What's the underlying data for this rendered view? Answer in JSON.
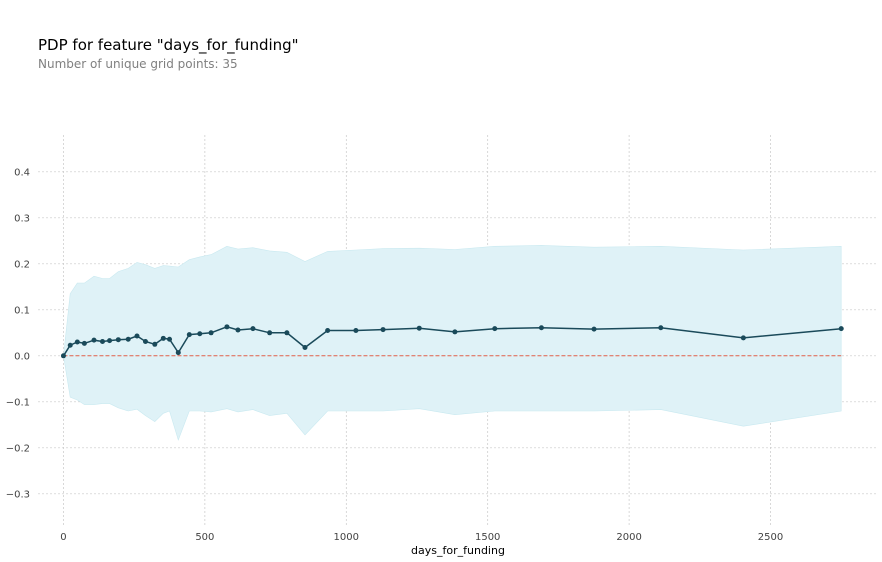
{
  "title": "PDP for feature \"days_for_funding\"",
  "subtitle": "Number of unique grid points: 35",
  "chart_data": {
    "type": "line",
    "xlabel": "days_for_funding",
    "ylabel": "",
    "xlim": [
      -90,
      2880
    ],
    "ylim": [
      -0.37,
      0.48
    ],
    "xticks": [
      0,
      500,
      1000,
      1500,
      2000,
      2500
    ],
    "xtick_labels": [
      "0",
      "500",
      "1000",
      "1500",
      "2000",
      "2500"
    ],
    "yticks": [
      -0.3,
      -0.2,
      -0.1,
      0.0,
      0.1,
      0.2,
      0.3,
      0.4
    ],
    "ytick_labels": [
      "−0.3",
      "−0.2",
      "−0.1",
      "0.0",
      "0.1",
      "0.2",
      "0.3",
      "0.4"
    ],
    "grid": true,
    "baseline": 0,
    "colors": {
      "line": "#1a4a5a",
      "band": "#dff2f7",
      "band_edge": "#c9e9f0",
      "baseline": "#e0604a",
      "grid": "#c8c8c8"
    },
    "x": [
      0,
      24,
      49,
      74,
      108,
      138,
      163,
      194,
      229,
      260,
      290,
      323,
      353,
      375,
      406,
      445,
      482,
      522,
      578,
      617,
      670,
      729,
      790,
      854,
      934,
      1034,
      1130,
      1258,
      1384,
      1525,
      1690,
      1876,
      2112,
      2404,
      2750
    ],
    "mean": [
      0.0,
      0.023,
      0.03,
      0.027,
      0.034,
      0.031,
      0.033,
      0.035,
      0.036,
      0.043,
      0.031,
      0.025,
      0.038,
      0.036,
      0.007,
      0.046,
      0.048,
      0.05,
      0.063,
      0.056,
      0.059,
      0.05,
      0.05,
      0.018,
      0.055,
      0.055,
      0.057,
      0.06,
      0.052,
      0.059,
      0.061,
      0.058,
      0.061,
      0.039,
      0.059
    ],
    "upper": [
      0.0,
      0.135,
      0.158,
      0.158,
      0.173,
      0.168,
      0.168,
      0.183,
      0.19,
      0.203,
      0.198,
      0.19,
      0.196,
      0.195,
      0.193,
      0.209,
      0.215,
      0.22,
      0.238,
      0.232,
      0.235,
      0.228,
      0.225,
      0.205,
      0.227,
      0.23,
      0.233,
      0.234,
      0.231,
      0.238,
      0.24,
      0.236,
      0.238,
      0.23,
      0.238
    ],
    "lower": [
      0.0,
      -0.09,
      -0.096,
      -0.106,
      -0.106,
      -0.104,
      -0.104,
      -0.113,
      -0.12,
      -0.116,
      -0.13,
      -0.143,
      -0.125,
      -0.12,
      -0.183,
      -0.12,
      -0.12,
      -0.122,
      -0.115,
      -0.122,
      -0.117,
      -0.13,
      -0.125,
      -0.172,
      -0.12,
      -0.12,
      -0.12,
      -0.115,
      -0.128,
      -0.12,
      -0.12,
      -0.12,
      -0.117,
      -0.153,
      -0.12
    ]
  }
}
